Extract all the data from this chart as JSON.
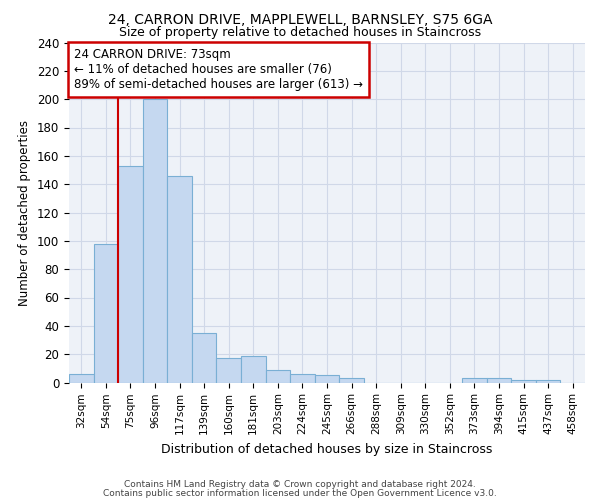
{
  "title1": "24, CARRON DRIVE, MAPPLEWELL, BARNSLEY, S75 6GA",
  "title2": "Size of property relative to detached houses in Staincross",
  "xlabel": "Distribution of detached houses by size in Staincross",
  "ylabel": "Number of detached properties",
  "bar_color": "#c5d8f0",
  "bar_edge_color": "#7aafd4",
  "categories": [
    "32sqm",
    "54sqm",
    "75sqm",
    "96sqm",
    "117sqm",
    "139sqm",
    "160sqm",
    "181sqm",
    "203sqm",
    "224sqm",
    "245sqm",
    "266sqm",
    "288sqm",
    "309sqm",
    "330sqm",
    "352sqm",
    "373sqm",
    "394sqm",
    "415sqm",
    "437sqm",
    "458sqm"
  ],
  "values": [
    6,
    98,
    153,
    200,
    146,
    35,
    17,
    19,
    9,
    6,
    5,
    3,
    0,
    0,
    0,
    0,
    3,
    3,
    2,
    2,
    0
  ],
  "vline_color": "#cc0000",
  "annotation_text": "24 CARRON DRIVE: 73sqm\n← 11% of detached houses are smaller (76)\n89% of semi-detached houses are larger (613) →",
  "annotation_box_color": "white",
  "annotation_box_edge": "#cc0000",
  "ylim": [
    0,
    240
  ],
  "yticks": [
    0,
    20,
    40,
    60,
    80,
    100,
    120,
    140,
    160,
    180,
    200,
    220,
    240
  ],
  "footer1": "Contains HM Land Registry data © Crown copyright and database right 2024.",
  "footer2": "Contains public sector information licensed under the Open Government Licence v3.0.",
  "grid_color": "#d0d8e8",
  "bg_color": "#eef2f8"
}
